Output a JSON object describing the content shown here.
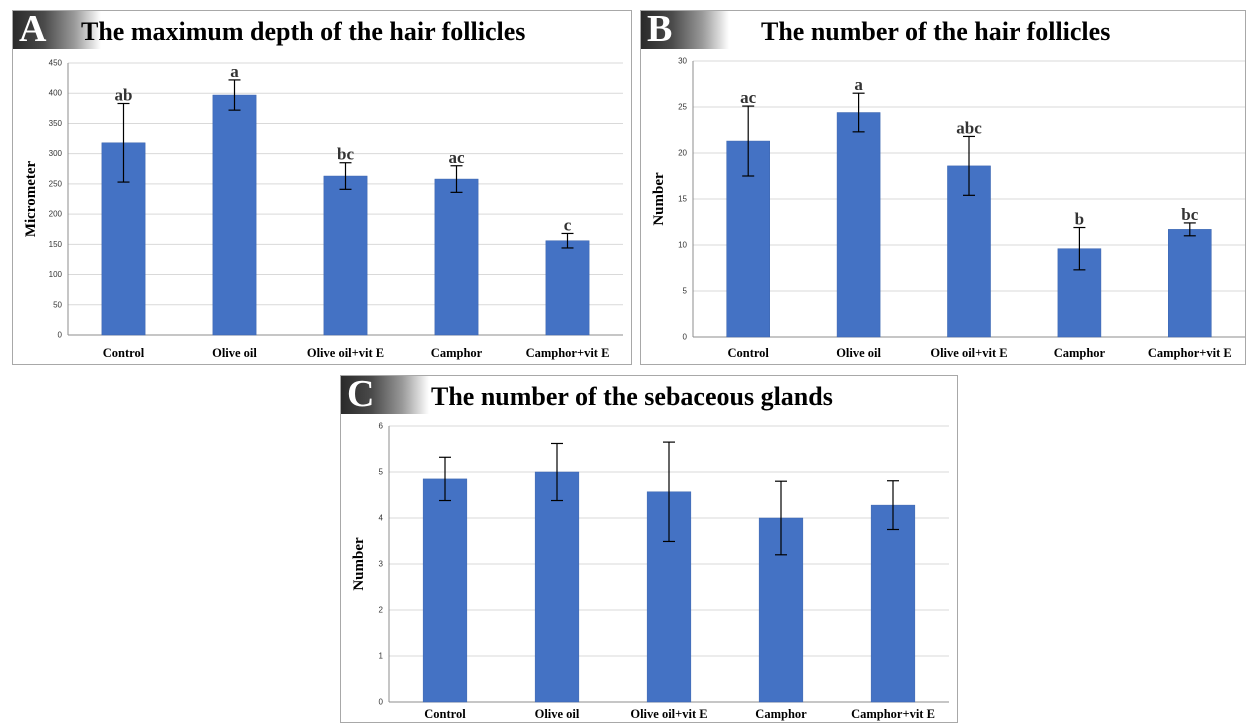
{
  "colors": {
    "bar": "#4472c4",
    "bar_edge": "#3a63ad",
    "grid": "#d9d9d9",
    "axis": "#8c8c8c",
    "errbar": "#000000"
  },
  "chart_data": [
    {
      "id": "A",
      "panel_letter": "A",
      "type": "bar",
      "title": "The maximum depth of the hair follicles",
      "ylabel": "Micrometer",
      "xlabel": "",
      "categories": [
        "Control",
        "Olive oil",
        "Olive oil+vit E",
        "Camphor",
        "Camphor+vit E"
      ],
      "values": [
        318,
        397,
        263,
        258,
        156
      ],
      "errors": [
        65,
        25,
        22,
        22,
        12
      ],
      "letters": [
        "ab",
        "a",
        "bc",
        "ac",
        "c"
      ],
      "ylim": [
        0,
        450
      ],
      "yticks": [
        0,
        50,
        100,
        150,
        200,
        250,
        300,
        350,
        400,
        450
      ],
      "grid": true
    },
    {
      "id": "B",
      "panel_letter": "B",
      "type": "bar",
      "title": "The number of the hair follicles",
      "ylabel": "Number",
      "xlabel": "",
      "categories": [
        "Control",
        "Olive oil",
        "Olive oil+vit E",
        "Camphor",
        "Camphor+vit E"
      ],
      "values": [
        21.3,
        24.4,
        18.6,
        9.6,
        11.7
      ],
      "errors": [
        3.8,
        2.1,
        3.2,
        2.3,
        0.7
      ],
      "letters": [
        "ac",
        "a",
        "abc",
        "b",
        "bc"
      ],
      "ylim": [
        0,
        30
      ],
      "yticks": [
        0,
        5,
        10,
        15,
        20,
        25,
        30
      ],
      "grid": true
    },
    {
      "id": "C",
      "panel_letter": "C",
      "type": "bar",
      "title": "The number of the sebaceous glands",
      "ylabel": "Number",
      "xlabel": "",
      "categories": [
        "Control",
        "Olive oil",
        "Olive oil+vit E",
        "Camphor",
        "Camphor+vit E"
      ],
      "values": [
        4.85,
        5.0,
        4.57,
        4.0,
        4.28
      ],
      "errors": [
        0.47,
        0.62,
        1.08,
        0.8,
        0.53
      ],
      "letters": [],
      "ylim": [
        0,
        6
      ],
      "yticks": [
        0,
        1,
        2,
        3,
        4,
        5,
        6
      ],
      "grid": true
    }
  ]
}
